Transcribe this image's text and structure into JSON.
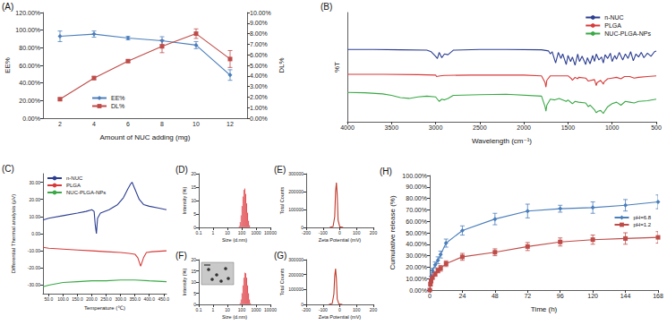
{
  "chart_data": [
    {
      "title": "(A)",
      "type": "line",
      "x_label": "Amount of NUC adding (mg)",
      "y_label": "EE%",
      "y2_label": "DL%",
      "categories": [
        "2",
        "4",
        "6",
        "8",
        "10",
        "12"
      ],
      "ylim": [
        0,
        120
      ],
      "yticks": [
        {
          "value": 0,
          "label": "0.00%"
        },
        {
          "value": 20,
          "label": "20.00%"
        },
        {
          "value": 40,
          "label": "40.00%"
        },
        {
          "value": 60,
          "label": "60.00%"
        },
        {
          "value": 80,
          "label": "80.00%"
        },
        {
          "value": 100,
          "label": "100.00%"
        },
        {
          "value": 120,
          "label": "120.00%"
        }
      ],
      "y2lim": [
        0,
        10
      ],
      "y2ticks": [
        {
          "value": 0,
          "label": "0.00%"
        },
        {
          "value": 1,
          "label": "1.00%"
        },
        {
          "value": 2,
          "label": "2.00%"
        },
        {
          "value": 3,
          "label": "3.00%"
        },
        {
          "value": 4,
          "label": "4.00%"
        },
        {
          "value": 5,
          "label": "5.00%"
        },
        {
          "value": 6,
          "label": "6.00%"
        },
        {
          "value": 7,
          "label": "7.00%"
        },
        {
          "value": 8,
          "label": "8.00%"
        },
        {
          "value": 9,
          "label": "9.00%"
        },
        {
          "value": 10,
          "label": "10.00%"
        }
      ],
      "legend": "bottom-left",
      "series": [
        {
          "name": "EE%",
          "color": "#4a7ebb",
          "marker": "diamond",
          "values": [
            93,
            95.5,
            91,
            88,
            83,
            49
          ],
          "errors": [
            6,
            3.5,
            2,
            4.5,
            4,
            6
          ]
        },
        {
          "name": "DL%",
          "color": "#be4b48",
          "marker": "square",
          "axis": "y2",
          "values": [
            1.8,
            3.8,
            5.4,
            6.8,
            8.0,
            5.6
          ],
          "errors": [
            0.1,
            0.15,
            0.1,
            0.6,
            0.45,
            0.8
          ]
        }
      ]
    },
    {
      "title": "(B)",
      "type": "line",
      "x_label": "Wavelength (cm⁻¹)",
      "y_label": "%T",
      "xlim": [
        4000,
        500
      ],
      "xticks": [
        4000,
        3500,
        3000,
        2500,
        2000,
        1500,
        1000,
        500
      ],
      "ylim": [
        0,
        145
      ],
      "tick_labels": "x",
      "legend": "top-right",
      "series": [
        {
          "name": "n-NUC",
          "color": "#2c3e91",
          "x": [
            4000,
            3700,
            3400,
            3100,
            3050,
            3010,
            2980,
            2960,
            2930,
            2900,
            2860,
            2800,
            2500,
            2200,
            1800,
            1720,
            1700,
            1680,
            1640,
            1610,
            1580,
            1560,
            1520,
            1500,
            1470,
            1450,
            1420,
            1390,
            1370,
            1340,
            1300,
            1280,
            1250,
            1220,
            1200,
            1180,
            1150,
            1120,
            1100,
            1080,
            1050,
            1020,
            1000,
            970,
            950,
            920,
            880,
            850,
            820,
            790,
            760,
            730,
            700,
            670,
            640,
            600,
            560,
            520,
            500
          ],
          "values": [
            96,
            96,
            95.5,
            95,
            93,
            88,
            84,
            92,
            85,
            90,
            89,
            95,
            96,
            96,
            95.5,
            94,
            90,
            93,
            78,
            92,
            84,
            90,
            76,
            88,
            80,
            86,
            75,
            90,
            80,
            87,
            76,
            85,
            77,
            88,
            80,
            90,
            82,
            86,
            78,
            89,
            84,
            91,
            80,
            88,
            83,
            92,
            82,
            90,
            84,
            93,
            81,
            90,
            86,
            92,
            85,
            91,
            87,
            93,
            94
          ]
        },
        {
          "name": "PLGA",
          "color": "#d63a3a",
          "x": [
            4000,
            3600,
            3200,
            3000,
            2990,
            2950,
            2900,
            2600,
            2000,
            1800,
            1760,
            1750,
            1740,
            1700,
            1500,
            1460,
            1450,
            1420,
            1390,
            1380,
            1300,
            1270,
            1200,
            1180,
            1170,
            1130,
            1100,
            1090,
            1050,
            1000,
            950,
            900,
            860,
            800,
            750,
            700,
            600,
            500
          ],
          "values": [
            63,
            63,
            62.5,
            62,
            60,
            61,
            61.5,
            62,
            62,
            61,
            52,
            46,
            55,
            61,
            61,
            57,
            55,
            59,
            57,
            59,
            58,
            54,
            56,
            48,
            52,
            55,
            50,
            53,
            57,
            58,
            59,
            57,
            60,
            60,
            58,
            59,
            60,
            61
          ]
        },
        {
          "name": "NUC-PLGA-NPs",
          "color": "#39a845",
          "x": [
            4000,
            3800,
            3600,
            3500,
            3400,
            3300,
            3200,
            3100,
            3000,
            2960,
            2930,
            2900,
            2860,
            2800,
            2500,
            2200,
            1800,
            1760,
            1750,
            1740,
            1700,
            1650,
            1600,
            1520,
            1500,
            1460,
            1450,
            1420,
            1380,
            1300,
            1270,
            1250,
            1200,
            1180,
            1160,
            1130,
            1100,
            1090,
            1050,
            1000,
            950,
            900,
            850,
            800,
            750,
            700,
            600,
            500
          ],
          "values": [
            39,
            38.5,
            37,
            35,
            32,
            31,
            33,
            34,
            33,
            27,
            30,
            29,
            31,
            35,
            36,
            36.5,
            34,
            20,
            14,
            22,
            30,
            29,
            31,
            27,
            29,
            25,
            24,
            27,
            26,
            25,
            20,
            22,
            16,
            12,
            14,
            15,
            11,
            13,
            20,
            24,
            26,
            22,
            27,
            26,
            25,
            27,
            28,
            30
          ]
        }
      ]
    },
    {
      "title": "(C)",
      "type": "line",
      "x_label": "Temperature (℃)",
      "y_label": "Differential Thermal analysis (μV)",
      "xlim": [
        30,
        460
      ],
      "xticks": [
        {
          "value": 50,
          "label": "50.0"
        },
        {
          "value": 100,
          "label": "100.0"
        },
        {
          "value": 150,
          "label": "150.0"
        },
        {
          "value": 200,
          "label": "200.0"
        },
        {
          "value": 250,
          "label": "250.0"
        },
        {
          "value": 300,
          "label": "300.0"
        },
        {
          "value": 350,
          "label": "350.0"
        },
        {
          "value": 400,
          "label": "400.0"
        },
        {
          "value": 450,
          "label": "450.0"
        }
      ],
      "ylim": [
        -35,
        35
      ],
      "yticks": [
        {
          "value": -30,
          "label": "-30.00"
        },
        {
          "value": -20,
          "label": "-20.00"
        },
        {
          "value": -10,
          "label": "-10.00"
        },
        {
          "value": 0,
          "label": "0.00"
        },
        {
          "value": 10,
          "label": "10.00"
        },
        {
          "value": 20,
          "label": "20.00"
        },
        {
          "value": 30,
          "label": "30.00"
        }
      ],
      "legend": "top-left",
      "series": [
        {
          "name": "n-NUC",
          "color": "#2c3e91",
          "x": [
            30,
            50,
            100,
            150,
            180,
            200,
            208,
            212,
            216,
            220,
            230,
            260,
            290,
            310,
            325,
            335,
            340,
            350,
            365,
            380,
            400,
            430,
            460
          ],
          "values": [
            8,
            9,
            10.5,
            12,
            13,
            14,
            13,
            5,
            0,
            9,
            12,
            14,
            17,
            21,
            26,
            29,
            30,
            26,
            20,
            17,
            16,
            15,
            14
          ]
        },
        {
          "name": "PLGA",
          "color": "#d63a3a",
          "x": [
            30,
            50,
            100,
            150,
            200,
            250,
            300,
            330,
            350,
            360,
            370,
            380,
            390,
            410,
            460
          ],
          "values": [
            -8,
            -8.5,
            -9,
            -9.5,
            -10,
            -10.5,
            -11,
            -11.5,
            -12,
            -14,
            -19,
            -14,
            -11,
            -10.5,
            -10
          ]
        },
        {
          "name": "NUC-PLGA-NPs",
          "color": "#39a845",
          "x": [
            30,
            50,
            100,
            150,
            200,
            250,
            300,
            350,
            400,
            460
          ],
          "values": [
            -31,
            -30,
            -28.5,
            -28,
            -27.5,
            -27.5,
            -27,
            -27,
            -27.5,
            -28
          ]
        }
      ]
    },
    {
      "title": "(D)",
      "type": "histogram",
      "log": "x",
      "x_label": "Size (d.nm)",
      "y_label": "Intensity (%)",
      "xlim": [
        0.1,
        10000
      ],
      "xticks": [
        0.1,
        1,
        10,
        100,
        1000,
        10000
      ],
      "ylim": [
        0,
        20
      ],
      "yticks": [
        0,
        5,
        10,
        15,
        20
      ],
      "color": "#d9141c",
      "bins": [
        63,
        73,
        85,
        98,
        114,
        132,
        153,
        177,
        205,
        238,
        276,
        320,
        371
      ],
      "values": [
        0.5,
        2,
        4.5,
        8,
        11.5,
        14,
        14.5,
        12.5,
        9,
        5.5,
        2.5,
        0.8
      ]
    },
    {
      "title": "(E)",
      "type": "line",
      "x_label": "Zeta Potential (mV)",
      "y_label": "Total Counts",
      "xlim": [
        -200,
        200
      ],
      "xticks": [
        -200,
        -100,
        0,
        100,
        200
      ],
      "ylim": [
        0,
        300000
      ],
      "yticks": [
        0,
        100000,
        200000,
        300000
      ],
      "color": "#c0392b",
      "x": [
        -60,
        -40,
        -30,
        -25,
        -20,
        -15,
        -10,
        0,
        20
      ],
      "values": [
        0,
        5000,
        60000,
        200000,
        250000,
        180000,
        40000,
        3000,
        0
      ]
    },
    {
      "title": "(F)",
      "type": "histogram",
      "log": "x",
      "x_label": "Size (d.nm)",
      "y_label": "Intensity (%)",
      "xlim": [
        0.1,
        10000
      ],
      "xticks": [
        0.1,
        1,
        10,
        100,
        1000,
        10000
      ],
      "ylim": [
        0,
        20
      ],
      "yticks": [
        0,
        5,
        10,
        15,
        20
      ],
      "color": "#d9141c",
      "bins": [
        73,
        85,
        98,
        114,
        132,
        153,
        177,
        205,
        238,
        276,
        320,
        371,
        430
      ],
      "values": [
        0.6,
        2.2,
        5,
        8.5,
        12,
        14.2,
        14,
        12,
        8.5,
        5,
        2.2,
        0.6
      ]
    },
    {
      "title": "(G)",
      "type": "line",
      "x_label": "Zeta Potential (mV)",
      "y_label": "Total Counts",
      "xlim": [
        -200,
        200
      ],
      "xticks": [
        -200,
        -100,
        0,
        100,
        200
      ],
      "ylim": [
        0,
        300000
      ],
      "yticks": [
        0,
        100000,
        200000,
        300000
      ],
      "color": "#c0392b",
      "x": [
        -65,
        -45,
        -35,
        -30,
        -25,
        -20,
        -15,
        -5,
        15
      ],
      "values": [
        0,
        6000,
        70000,
        190000,
        240000,
        170000,
        35000,
        2000,
        0
      ]
    },
    {
      "title": "(H)",
      "type": "line",
      "x_label": "Time (h)",
      "y_label": "Cumulative release (%)",
      "x": [
        0,
        0.5,
        1,
        2,
        4,
        6,
        8,
        12,
        24,
        48,
        72,
        96,
        120,
        144,
        168
      ],
      "xlim": [
        0,
        168
      ],
      "xticks": [
        0,
        24,
        48,
        72,
        96,
        120,
        144,
        168
      ],
      "ylim": [
        0,
        100
      ],
      "yticks": [
        {
          "value": 0,
          "label": "0.00%"
        },
        {
          "value": 10,
          "label": "10.00%"
        },
        {
          "value": 20,
          "label": "20.00%"
        },
        {
          "value": 30,
          "label": "30.00%"
        },
        {
          "value": 40,
          "label": "40.00%"
        },
        {
          "value": 50,
          "label": "50.00%"
        },
        {
          "value": 60,
          "label": "60.00%"
        },
        {
          "value": 70,
          "label": "70.00%"
        },
        {
          "value": 80,
          "label": "80.00%"
        },
        {
          "value": 90,
          "label": "90.00%"
        },
        {
          "value": 100,
          "label": "100.00%"
        }
      ],
      "legend": "right",
      "series": [
        {
          "name": "pH=6.8",
          "color": "#4a7ebb",
          "marker": "diamond",
          "values": [
            0,
            7,
            12,
            17,
            22,
            26,
            31,
            41,
            52,
            62,
            69,
            71,
            72,
            74,
            77
          ],
          "errors": [
            0,
            1,
            1.5,
            2,
            2.5,
            3,
            3,
            3.5,
            4,
            5,
            6,
            3,
            5,
            5,
            6
          ]
        },
        {
          "name": "pH=1.2",
          "color": "#be4b48",
          "marker": "square",
          "values": [
            0,
            5,
            8,
            11,
            14,
            17,
            19,
            23,
            29,
            33,
            38,
            42,
            44,
            45,
            46
          ],
          "errors": [
            0,
            1,
            1.5,
            1.5,
            2,
            2,
            2.5,
            2.5,
            3,
            3,
            3.5,
            3.5,
            4,
            5,
            5
          ]
        }
      ]
    }
  ]
}
